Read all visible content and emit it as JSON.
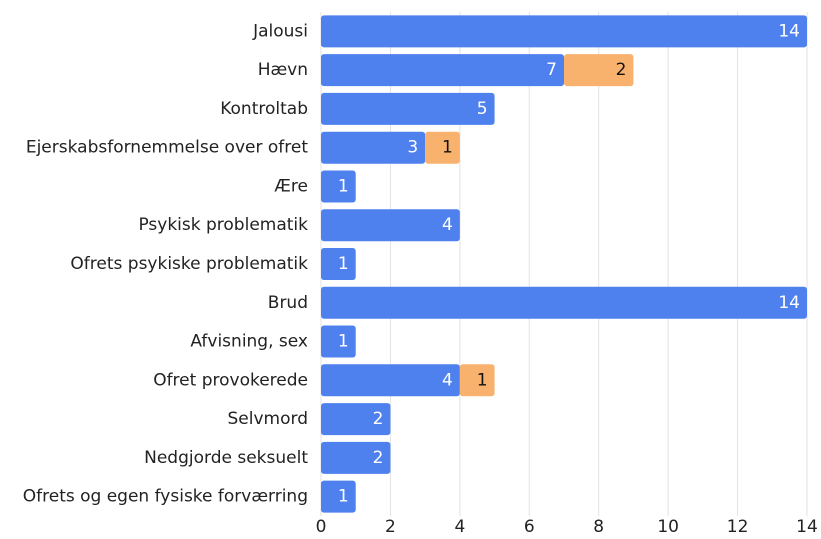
{
  "chart_data": {
    "type": "bar",
    "orientation": "horizontal",
    "stacked": true,
    "categories": [
      "Jalousi",
      "Hævn",
      "Kontroltab",
      "Ejerskabsfornemmelse over ofret",
      "Ære",
      "Psykisk problematik",
      "Ofrets psykiske problematik",
      "Brud",
      "Afvisning, sex",
      "Ofret provokerede",
      "Selvmord",
      "Nedgjorde seksuelt",
      "Ofrets og egen fysiske forværring"
    ],
    "series": [
      {
        "color": "#4f81ee",
        "label_color": "#ffffff",
        "values": [
          14,
          7,
          5,
          3,
          1,
          4,
          1,
          14,
          1,
          4,
          2,
          2,
          1
        ]
      },
      {
        "color": "#f8b26e",
        "label_color": "#111111",
        "values": [
          null,
          2,
          null,
          1,
          null,
          null,
          null,
          null,
          null,
          1,
          null,
          null,
          null
        ]
      }
    ],
    "xlim": [
      0,
      14
    ],
    "xticks": [
      0,
      2,
      4,
      6,
      8,
      10,
      12,
      14
    ],
    "grid": true
  }
}
